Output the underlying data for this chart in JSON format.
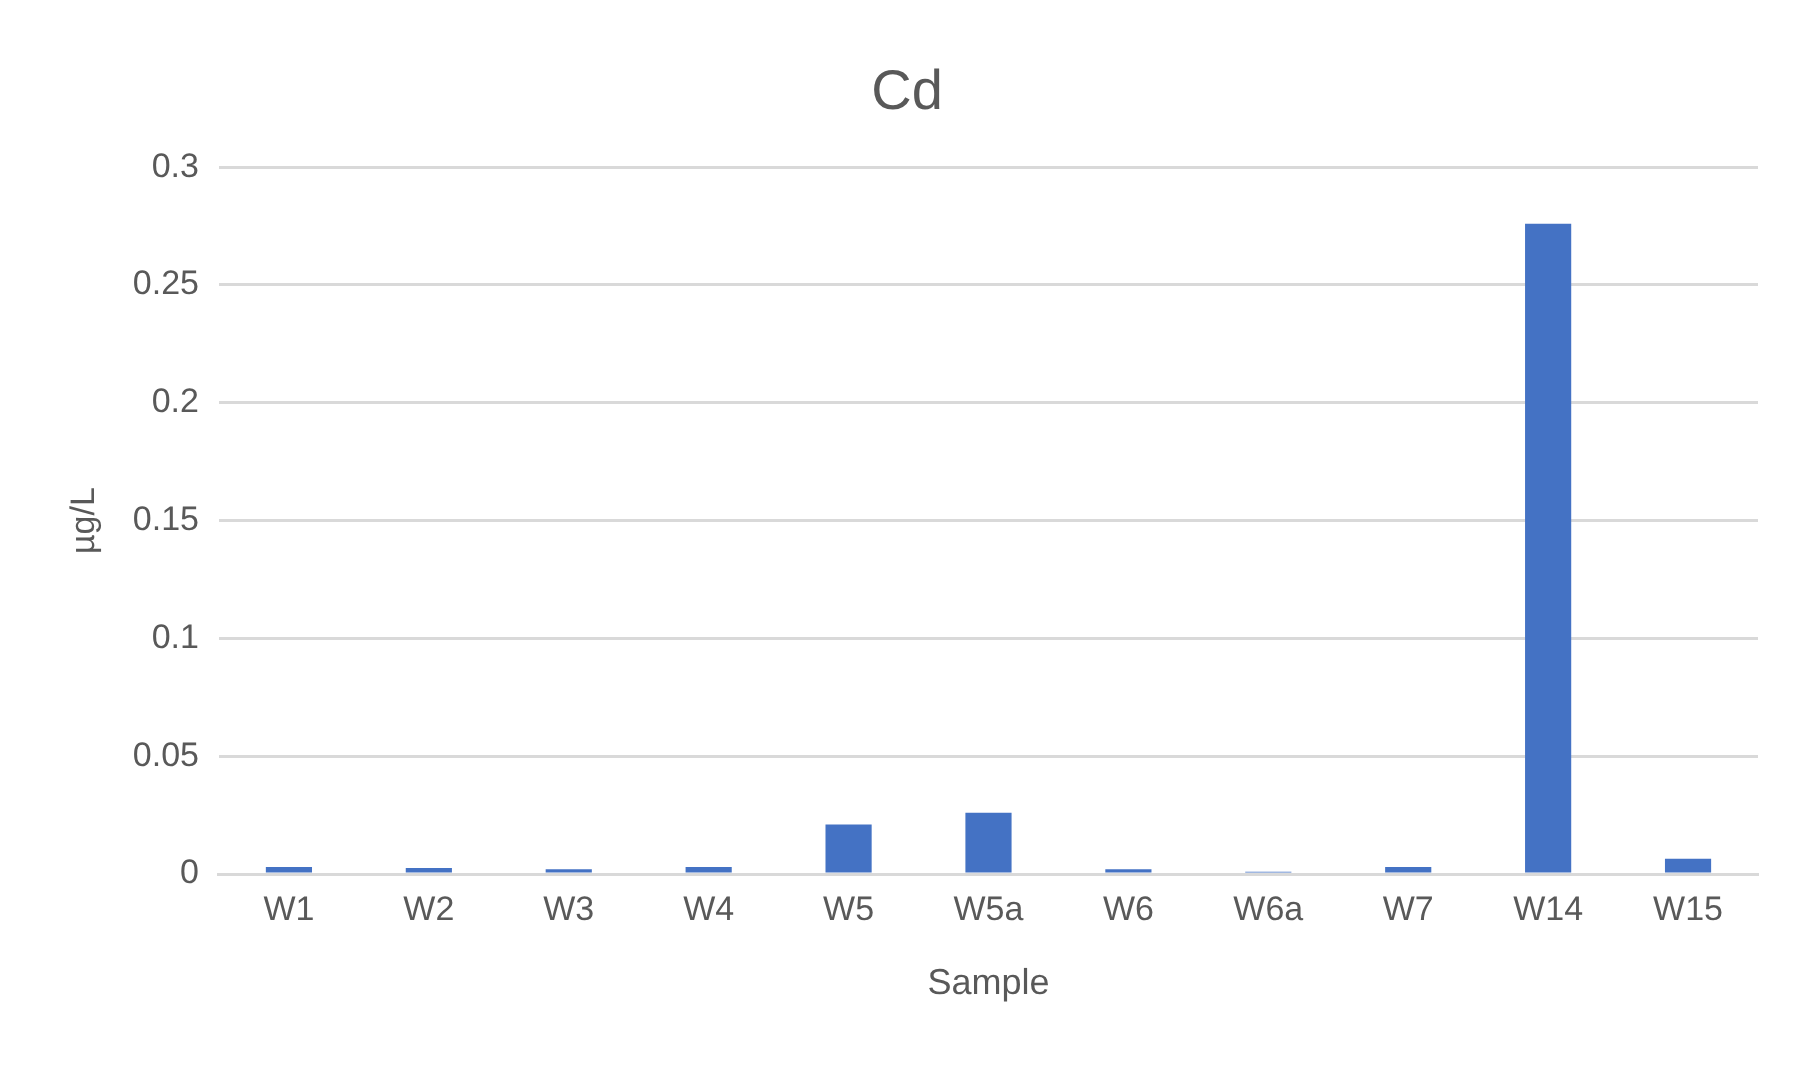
{
  "chart_data": {
    "type": "bar",
    "title": "Cd",
    "xlabel": "Sample",
    "ylabel": "µg/L",
    "categories": [
      "W1",
      "W2",
      "W3",
      "W4",
      "W5",
      "W5a",
      "W6",
      "W6a",
      "W7",
      "W14",
      "W15"
    ],
    "values": [
      0.003,
      0.0025,
      0.002,
      0.003,
      0.021,
      0.026,
      0.002,
      0.001,
      0.003,
      0.276,
      0.0065
    ],
    "color": "#4472c4",
    "ylim": [
      0,
      0.3
    ],
    "yticks": [
      0,
      0.05,
      0.1,
      0.15,
      0.2,
      0.25,
      0.3
    ],
    "grid": "y",
    "legend": false
  }
}
